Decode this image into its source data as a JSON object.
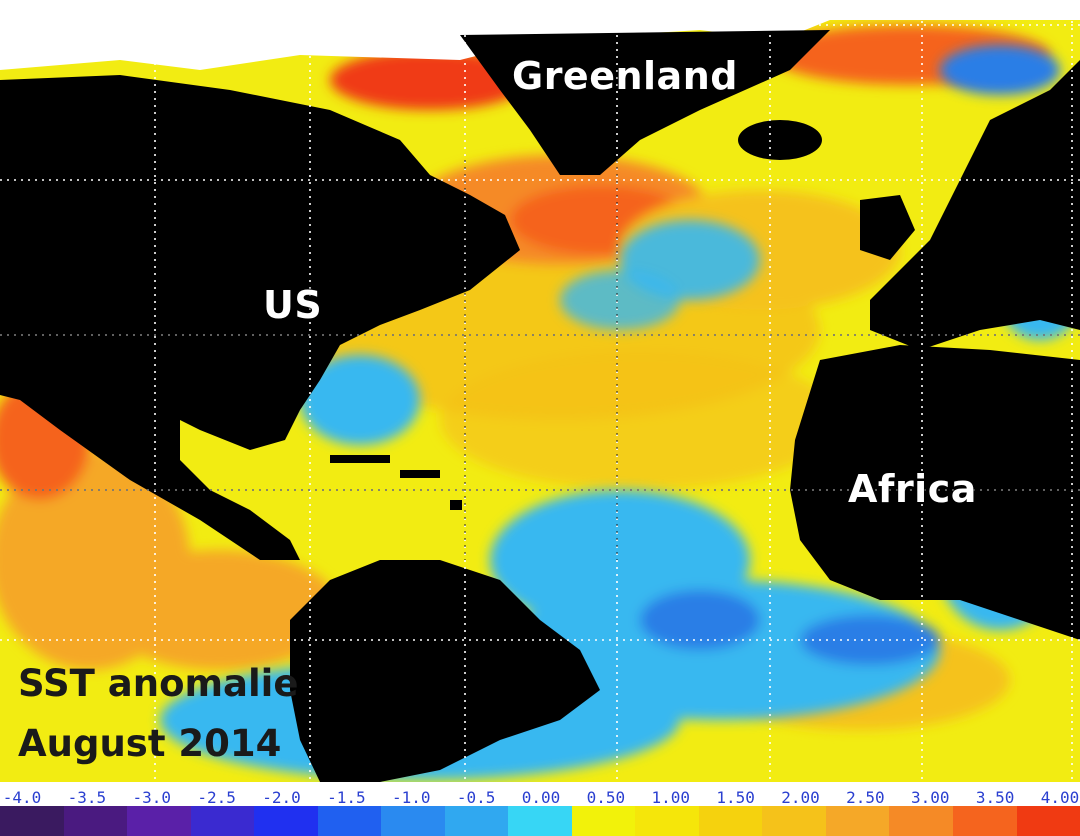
{
  "map": {
    "labels": {
      "greenland": "Greenland",
      "us": "US",
      "africa": "Africa"
    },
    "caption": {
      "line1": "SST anomalie",
      "line2": "August 2014"
    },
    "colors": {
      "land": "#000000",
      "near_zero_warm": "#f2f20a",
      "warm": "#f5c21a",
      "warmer": "#f59a2a",
      "hot": "#f56a1e",
      "very_hot": "#f03010",
      "cool": "#37b8f0",
      "cooler": "#2a7ee6",
      "cold": "#2a3fd0",
      "sea_ice": "#ffffff"
    }
  },
  "legend": {
    "ticks": [
      "-4.0",
      "-3.5",
      "-3.0",
      "-2.5",
      "-2.0",
      "-1.5",
      "-1.0",
      "-0.5",
      "0.00",
      "0.50",
      "1.00",
      "1.50",
      "2.00",
      "2.50",
      "3.00",
      "3.50",
      "4.00"
    ],
    "swatches": [
      "#3a1a60",
      "#4a1a80",
      "#5a20a8",
      "#3a2ad0",
      "#2030f0",
      "#2060f0",
      "#2a8af0",
      "#30a8f0",
      "#37d6f5",
      "#f2f20a",
      "#f5e60a",
      "#f5d20e",
      "#f5c21a",
      "#f5a828",
      "#f58a26",
      "#f5641e",
      "#f03a12"
    ]
  }
}
